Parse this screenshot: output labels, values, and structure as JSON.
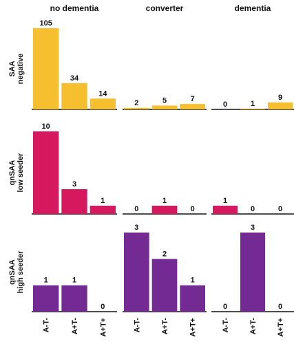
{
  "chart_data": {
    "type": "bar-grid",
    "columns": [
      "no dementia",
      "converter",
      "dementia"
    ],
    "categories": [
      "A-T-",
      "A+T-",
      "A+T+"
    ],
    "rows": [
      {
        "label": [
          "SAA",
          "negative"
        ],
        "color": "#F5BF2F",
        "ylim": [
          0,
          105
        ],
        "values": [
          [
            105,
            34,
            14
          ],
          [
            2,
            5,
            7
          ],
          [
            0,
            1,
            9
          ]
        ]
      },
      {
        "label": [
          "qnSAA",
          "low seeder"
        ],
        "color": "#D6195E",
        "ylim": [
          0,
          10
        ],
        "values": [
          [
            10,
            3,
            1
          ],
          [
            0,
            1,
            0
          ],
          [
            1,
            0,
            0
          ]
        ]
      },
      {
        "label": [
          "qnSAA",
          "high seeder"
        ],
        "color": "#742A93",
        "ylim": [
          0,
          3
        ],
        "values": [
          [
            1,
            1,
            0
          ],
          [
            3,
            2,
            1
          ],
          [
            0,
            3,
            0
          ]
        ]
      }
    ]
  }
}
